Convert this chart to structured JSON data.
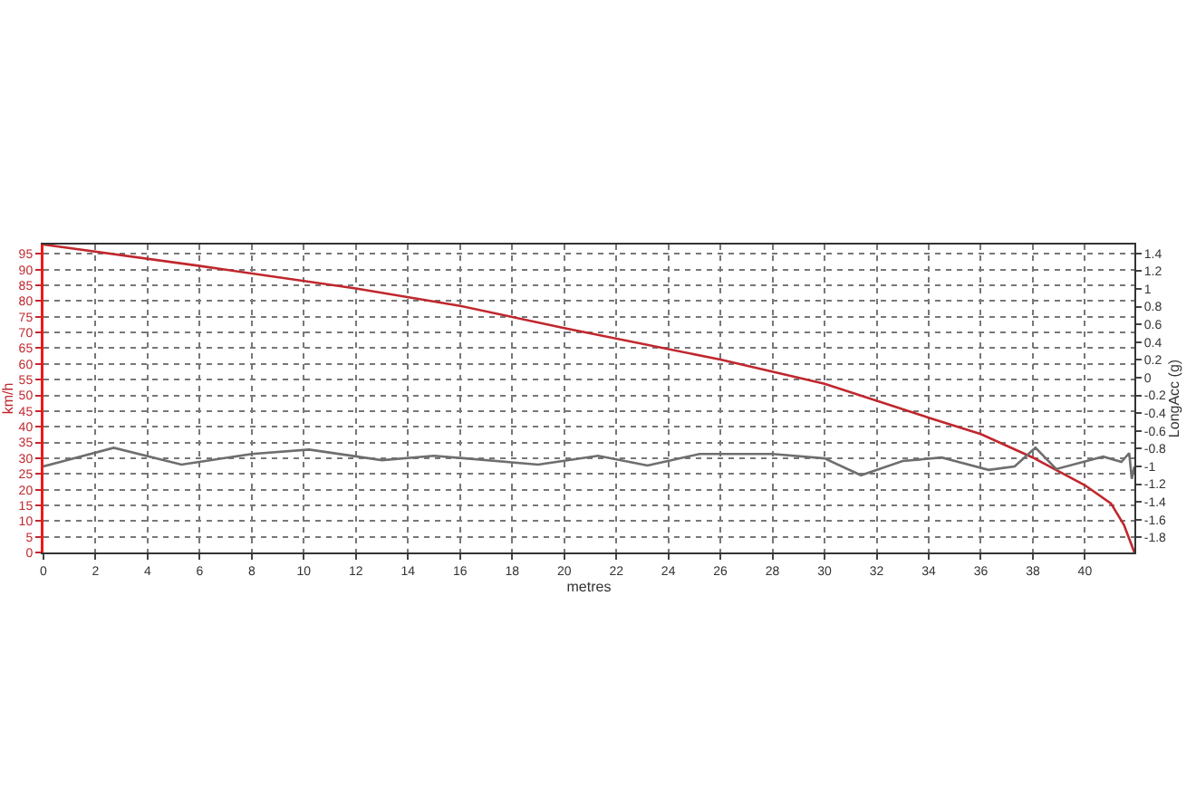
{
  "chart_data": {
    "type": "line",
    "xlabel": "metres",
    "ylabel": "km/h",
    "y2label": "LongAcc (g)",
    "xlim": [
      0,
      41.9
    ],
    "xticks": [
      0,
      2,
      4,
      6,
      8,
      10,
      12,
      14,
      16,
      18,
      20,
      22,
      24,
      26,
      28,
      30,
      32,
      34,
      36,
      38,
      40
    ],
    "ylim": [
      0,
      98
    ],
    "yticks": [
      0,
      5,
      10,
      15,
      20,
      25,
      30,
      35,
      40,
      45,
      50,
      55,
      60,
      65,
      70,
      75,
      80,
      85,
      90,
      95
    ],
    "y2lim": [
      -1.97,
      1.5
    ],
    "y2ticks": [
      -1.8,
      -1.6,
      -1.4,
      -1.2,
      -1,
      -0.8,
      -0.6,
      -0.4,
      -0.2,
      0,
      0.2,
      0.4,
      0.6,
      0.8,
      1,
      1.2,
      1.4
    ],
    "grid": true,
    "marker": "none",
    "line_style": "solid",
    "series": [
      {
        "color": "#c0272d",
        "x": [
          0,
          6,
          12,
          16,
          20,
          26,
          30,
          34,
          36,
          38,
          40,
          41,
          41.5,
          41.9
        ],
        "values": [
          98,
          91.2,
          84,
          78.5,
          71.4,
          61.4,
          53.7,
          42.9,
          37.7,
          30.2,
          21.4,
          15.6,
          8.8,
          0
        ]
      },
      {
        "color": "#6e6e6e",
        "axis": "y2",
        "x": [
          0,
          2.7,
          5.3,
          8,
          10.2,
          13,
          15,
          19,
          21.3,
          23.2,
          25.2,
          28,
          30,
          31.4,
          33,
          34.5,
          36.3,
          37.3,
          38.1,
          38.9,
          40.7,
          41.4,
          41.7,
          41.8,
          41.9
        ],
        "values": [
          -1,
          -0.79,
          -0.98,
          -0.86,
          -0.81,
          -0.93,
          -0.88,
          -0.98,
          -0.88,
          -0.99,
          -0.86,
          -0.86,
          -0.91,
          -1.1,
          -0.94,
          -0.9,
          -1.04,
          -1,
          -0.79,
          -1.03,
          -0.89,
          -0.95,
          -0.85,
          -1.14,
          -1
        ]
      }
    ]
  }
}
